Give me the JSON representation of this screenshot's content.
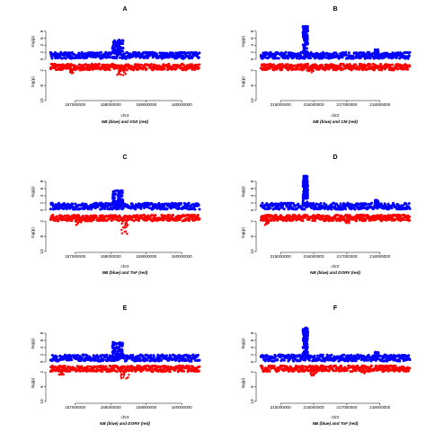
{
  "figure": {
    "top_series_color": "#0000ff",
    "bottom_series_color": "#ff0000"
  },
  "chart_data": [
    {
      "type": "scatter",
      "panel_label": "A",
      "xlabel": "chr3",
      "caption": "NB (blue) and VSD (red)",
      "xticks": [
        "157000000",
        "158000000",
        "159000000",
        "160000000"
      ],
      "xtick_values": [
        157000000,
        158000000,
        159000000,
        160000000
      ],
      "xlim": [
        156300000,
        160500000
      ],
      "top": {
        "ylabel": "-log(p)",
        "ylim": [
          0,
          10
        ],
        "yticks": [
          "0",
          "2",
          "4",
          "6",
          "8"
        ],
        "baseline_band": [
          0,
          1.8
        ],
        "peaks": [
          {
            "x": 158200000,
            "width": 300000,
            "height": 5.5
          }
        ]
      },
      "bottom": {
        "ylabel": "log(p)",
        "ylim": [
          0,
          10
        ],
        "yticks": [
          "2",
          "6",
          "10"
        ],
        "baseline_band": [
          0,
          1.6
        ],
        "peaks": [
          {
            "x": 158300000,
            "width": 250000,
            "height": 3.5
          },
          {
            "x": 156900000,
            "width": 150000,
            "height": 2.8
          }
        ]
      }
    },
    {
      "type": "scatter",
      "panel_label": "B",
      "xlabel": "chr2",
      "caption": "NB (blue) and CM (red)",
      "xticks": [
        "215000000",
        "216000000",
        "217000000",
        "218000000"
      ],
      "xtick_values": [
        215000000,
        216000000,
        217000000,
        218000000
      ],
      "xlim": [
        214400000,
        218900000
      ],
      "top": {
        "ylabel": "-log(p)",
        "ylim": [
          0,
          10
        ],
        "yticks": [
          "0",
          "2",
          "4",
          "6",
          "8"
        ],
        "baseline_band": [
          0,
          1.8
        ],
        "peaks": [
          {
            "x": 215750000,
            "width": 150000,
            "height": 9.5
          },
          {
            "x": 217900000,
            "width": 100000,
            "height": 2.8
          }
        ]
      },
      "bottom": {
        "ylabel": "log(p)",
        "ylim": [
          0,
          10
        ],
        "yticks": [
          "2",
          "6",
          "10"
        ],
        "baseline_band": [
          0,
          1.6
        ],
        "peaks": [
          {
            "x": 215900000,
            "width": 200000,
            "height": 2.5
          }
        ]
      }
    },
    {
      "type": "scatter",
      "panel_label": "C",
      "xlabel": "chr3",
      "caption": "NB (blue) and ToF (red)",
      "xticks": [
        "157000000",
        "158000000",
        "159000000",
        "160000000"
      ],
      "xtick_values": [
        157000000,
        158000000,
        159000000,
        160000000
      ],
      "xlim": [
        156300000,
        160500000
      ],
      "top": {
        "ylabel": "-log(p)",
        "ylim": [
          0,
          10
        ],
        "yticks": [
          "0",
          "2",
          "4",
          "6",
          "8"
        ],
        "baseline_band": [
          0,
          1.8
        ],
        "peaks": [
          {
            "x": 158200000,
            "width": 300000,
            "height": 5.5
          }
        ]
      },
      "bottom": {
        "ylabel": "log(p)",
        "ylim": [
          0,
          10
        ],
        "yticks": [
          "2",
          "6",
          "10"
        ],
        "baseline_band": [
          0,
          1.6
        ],
        "peaks": [
          {
            "x": 158400000,
            "width": 200000,
            "height": 5.5
          },
          {
            "x": 157100000,
            "width": 200000,
            "height": 3.5
          }
        ]
      }
    },
    {
      "type": "scatter",
      "panel_label": "D",
      "xlabel": "chr2",
      "caption": "NB (blue) and DORV (red)",
      "xticks": [
        "215000000",
        "216000000",
        "217000000",
        "218000000"
      ],
      "xtick_values": [
        215000000,
        216000000,
        217000000,
        218000000
      ],
      "xlim": [
        214400000,
        218900000
      ],
      "top": {
        "ylabel": "-log(p)",
        "ylim": [
          0,
          10
        ],
        "yticks": [
          "0",
          "2",
          "4",
          "6",
          "8"
        ],
        "baseline_band": [
          0,
          1.8
        ],
        "peaks": [
          {
            "x": 215750000,
            "width": 150000,
            "height": 9.5
          },
          {
            "x": 217900000,
            "width": 100000,
            "height": 2.8
          }
        ]
      },
      "bottom": {
        "ylabel": "log(p)",
        "ylim": [
          0,
          10
        ],
        "yticks": [
          "2",
          "6",
          "10"
        ],
        "baseline_band": [
          0,
          1.6
        ],
        "peaks": [
          {
            "x": 214600000,
            "width": 150000,
            "height": 3.0
          },
          {
            "x": 217000000,
            "width": 150000,
            "height": 2.5
          }
        ]
      }
    },
    {
      "type": "scatter",
      "panel_label": "E",
      "xlabel": "chr3",
      "caption": "NB (blue) and DORV (red)",
      "xticks": [
        "157000000",
        "158000000",
        "159000000",
        "160000000"
      ],
      "xtick_values": [
        157000000,
        158000000,
        159000000,
        160000000
      ],
      "xlim": [
        156300000,
        160500000
      ],
      "top": {
        "ylabel": "-log(p)",
        "ylim": [
          0,
          10
        ],
        "yticks": [
          "0",
          "2",
          "4",
          "6",
          "8"
        ],
        "baseline_band": [
          0,
          1.8
        ],
        "peaks": [
          {
            "x": 158200000,
            "width": 300000,
            "height": 5.5
          }
        ]
      },
      "bottom": {
        "ylabel": "log(p)",
        "ylim": [
          0,
          10
        ],
        "yticks": [
          "2",
          "6",
          "10"
        ],
        "baseline_band": [
          0,
          1.6
        ],
        "peaks": [
          {
            "x": 158400000,
            "width": 250000,
            "height": 4.0
          },
          {
            "x": 156600000,
            "width": 150000,
            "height": 3.0
          }
        ]
      }
    },
    {
      "type": "scatter",
      "panel_label": "F",
      "xlabel": "chr2",
      "caption": "NB (blue) and ToF (red)",
      "xticks": [
        "215000000",
        "216000000",
        "217000000",
        "218000000"
      ],
      "xtick_values": [
        215000000,
        216000000,
        217000000,
        218000000
      ],
      "xlim": [
        214400000,
        218900000
      ],
      "top": {
        "ylabel": "-log(p)",
        "ylim": [
          0,
          10
        ],
        "yticks": [
          "0",
          "2",
          "4",
          "6",
          "8"
        ],
        "baseline_band": [
          0,
          1.8
        ],
        "peaks": [
          {
            "x": 215750000,
            "width": 150000,
            "height": 9.5
          },
          {
            "x": 217900000,
            "width": 100000,
            "height": 2.8
          }
        ]
      },
      "bottom": {
        "ylabel": "log(p)",
        "ylim": [
          0,
          10
        ],
        "yticks": [
          "2",
          "6",
          "10"
        ],
        "baseline_band": [
          0,
          1.6
        ],
        "peaks": [
          {
            "x": 216000000,
            "width": 200000,
            "height": 3.0
          },
          {
            "x": 217500000,
            "width": 150000,
            "height": 2.5
          }
        ]
      }
    }
  ]
}
